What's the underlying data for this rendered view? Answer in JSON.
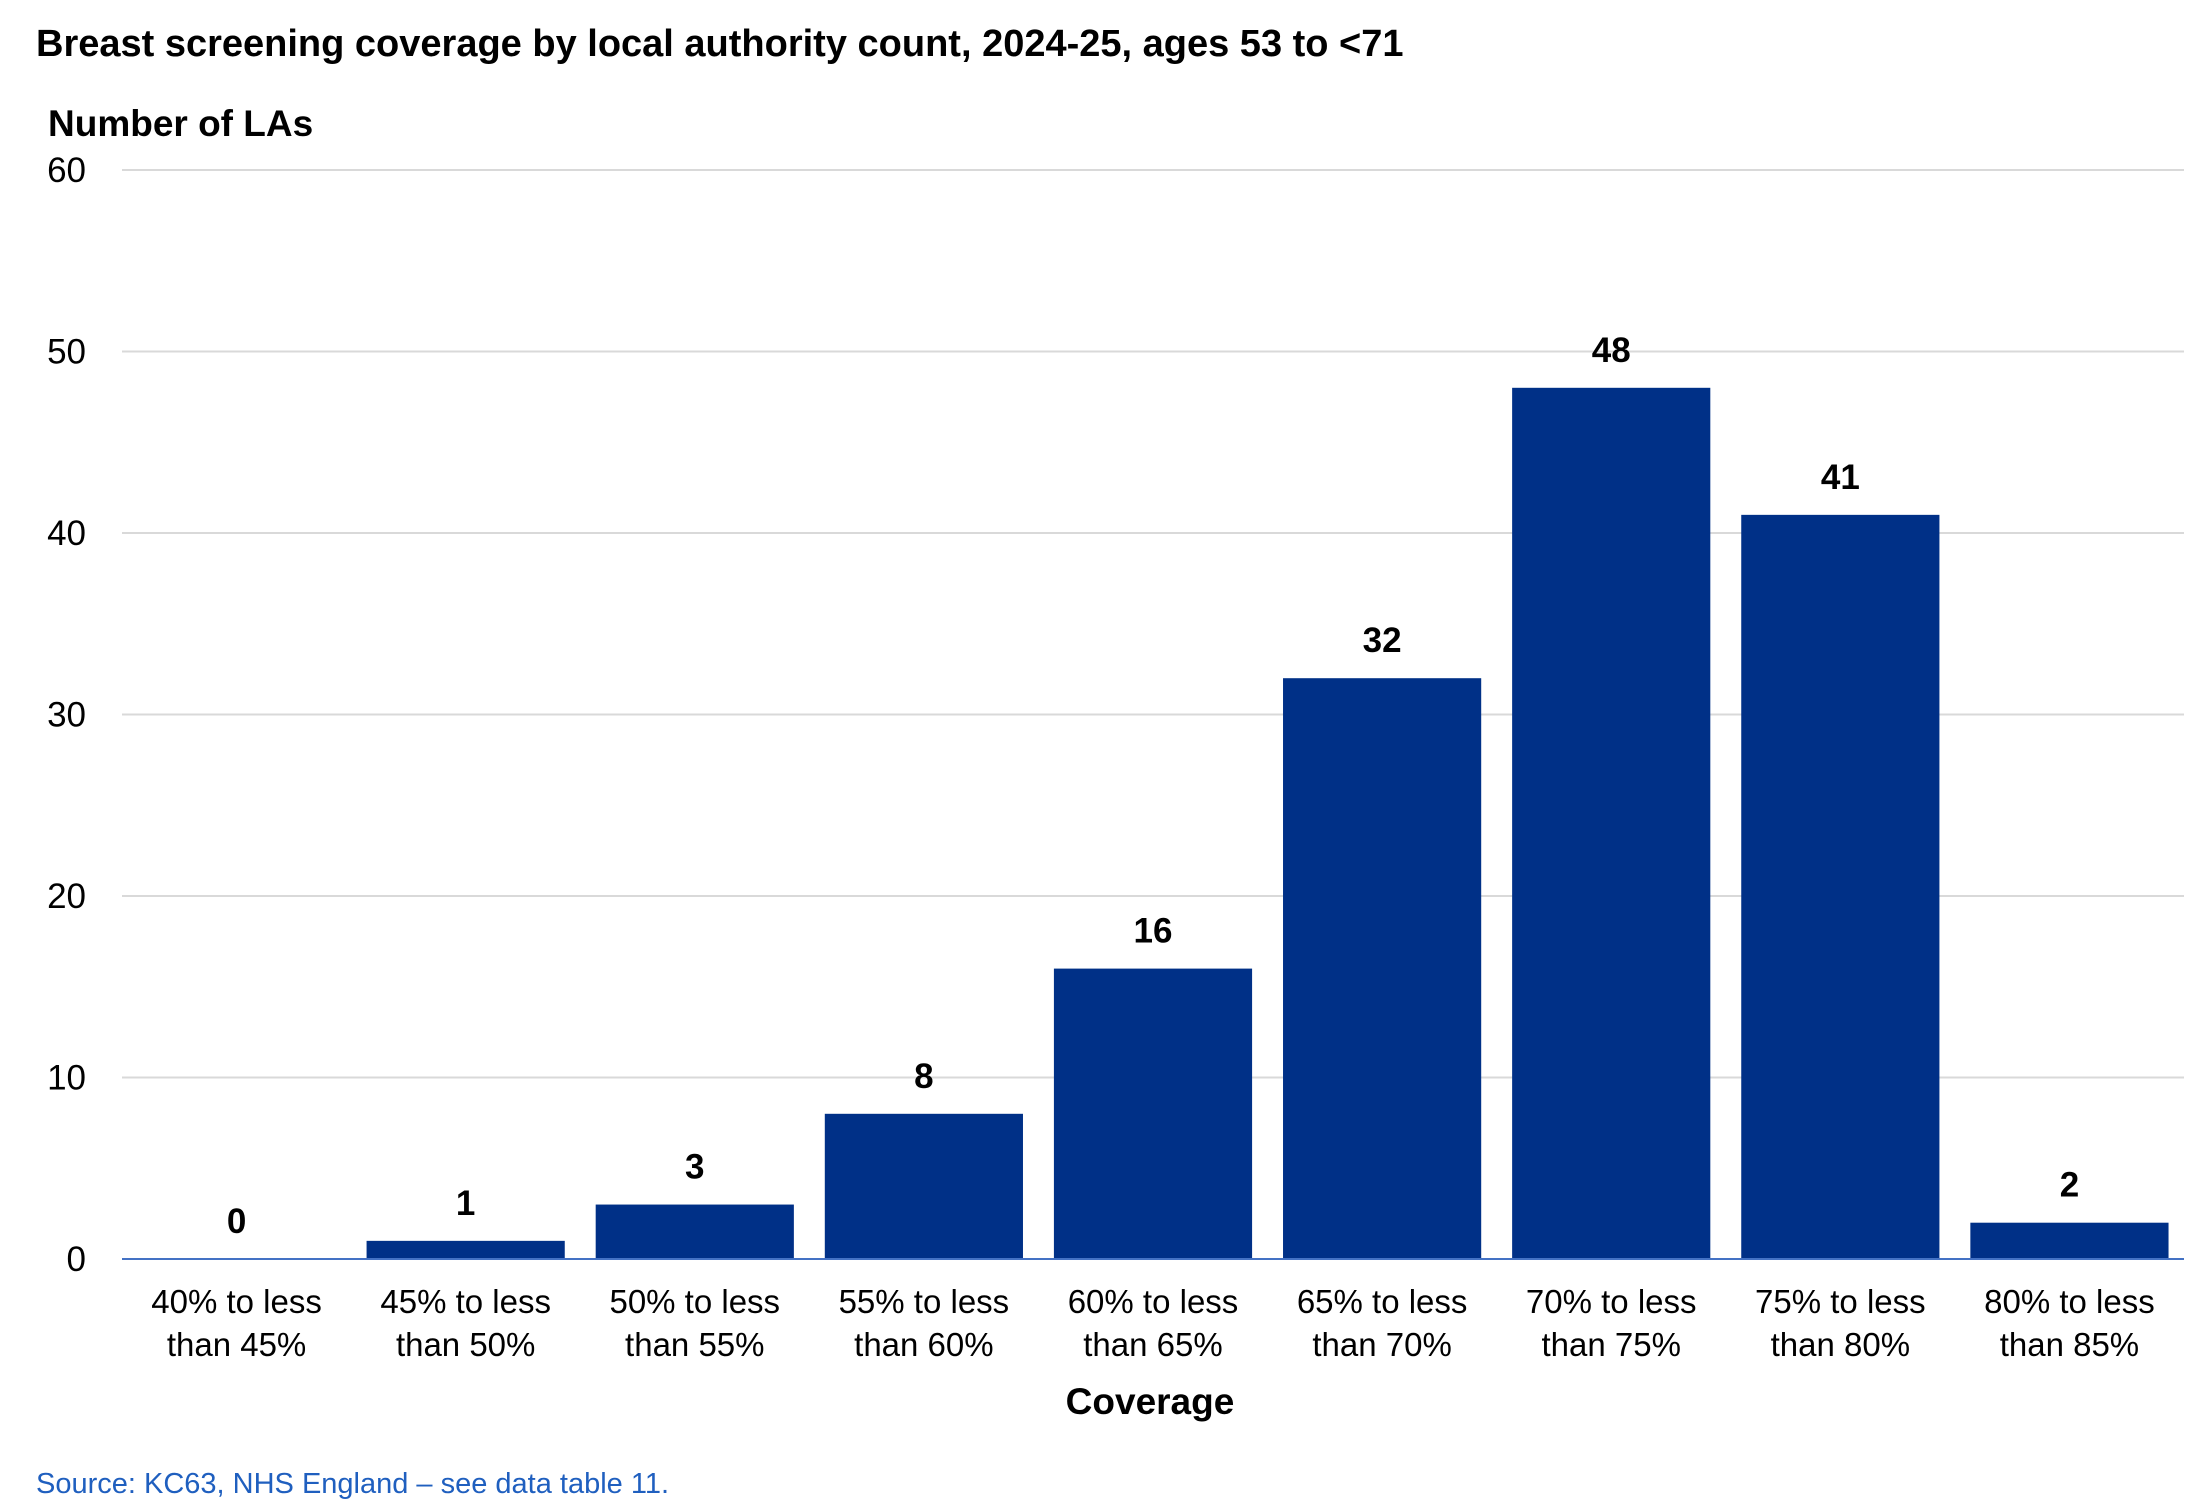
{
  "chart_data": {
    "type": "bar",
    "title": "Breast screening coverage by local authority count, 2024-25, ages 53 to <71",
    "ylabel": "Number of LAs",
    "xlabel": "Coverage",
    "categories": [
      [
        "40% to less",
        "than 45%"
      ],
      [
        "45% to less",
        "than 50%"
      ],
      [
        "50% to less",
        "than 55%"
      ],
      [
        "55% to less",
        "than 60%"
      ],
      [
        "60% to less",
        "than 65%"
      ],
      [
        "65% to less",
        "than 70%"
      ],
      [
        "70% to less",
        "than 75%"
      ],
      [
        "75% to less",
        "than 80%"
      ],
      [
        "80% to less",
        "than 85%"
      ]
    ],
    "values": [
      0,
      1,
      3,
      8,
      16,
      32,
      48,
      41,
      2
    ],
    "data_labels": [
      "0",
      "1",
      "3",
      "8",
      "16",
      "32",
      "48",
      "41",
      "2"
    ],
    "ylim": [
      0,
      60
    ],
    "yticks": [
      0,
      10,
      20,
      30,
      40,
      50,
      60
    ],
    "grid": true,
    "legend": "none",
    "bar_color": "#003087",
    "baseline_color": "#4472c4"
  },
  "source": {
    "text": "Source: KC63, NHS England – see data table 11.",
    "color": "#1f5fbf"
  }
}
